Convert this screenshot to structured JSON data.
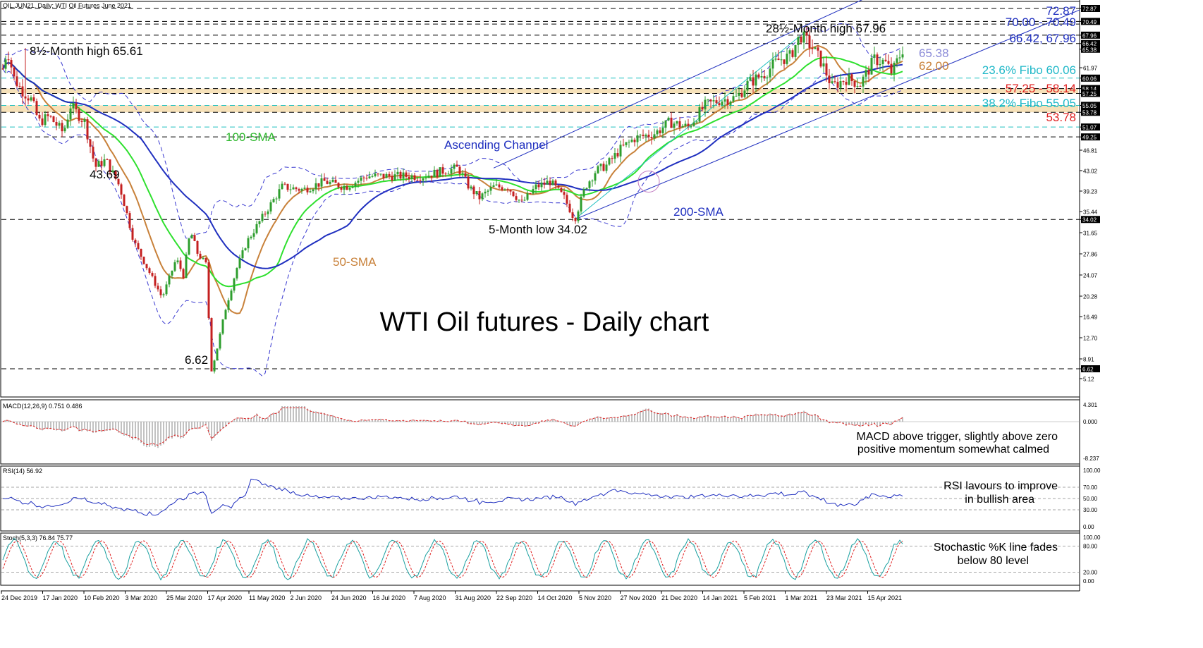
{
  "header": {
    "symbol_line": "OIL.JUN21, Daily:  WTI Oil Futures June 2021"
  },
  "chart_data": {
    "type": "candlestick",
    "title": "WTI Oil futures - Daily chart",
    "price_axis_ticks": [
      "72.87",
      "70.49",
      "67.96",
      "66.42",
      "65.38",
      "61.97",
      "60.06",
      "58.14",
      "57.25",
      "55.05",
      "53.78",
      "51.07",
      "49.25",
      "46.81",
      "43.02",
      "39.23",
      "35.44",
      "34.02",
      "31.65",
      "27.86",
      "24.07",
      "20.28",
      "16.49",
      "12.70",
      "8.91",
      "6.62",
      "5.12"
    ],
    "time_axis_labels": [
      "24 Dec 2019",
      "17 Jan 2020",
      "10 Feb 2020",
      "3 Mar 2020",
      "25 Mar 2020",
      "17 Apr 2020",
      "11 May 2020",
      "2 Jun 2020",
      "24 Jun 2020",
      "16 Jul 2020",
      "7 Aug 2020",
      "31 Aug 2020",
      "22 Sep 2020",
      "14 Oct 2020",
      "5 Nov 2020",
      "27 Nov 2020",
      "21 Dec 2020",
      "14 Jan 2021",
      "5 Feb 2021",
      "1 Mar 2021",
      "23 Mar 2021",
      "15 Apr 2021"
    ],
    "key_prices": {
      "high_8_5_month": 65.61,
      "low_covid": 6.62,
      "feb_low": 43.69,
      "low_5_month": 34.02,
      "high_28_5_month": 67.96,
      "current_close": 65.38,
      "sma50": 62.0
    },
    "horizontal_levels": [
      72.87,
      70.49,
      70.0,
      67.96,
      66.42,
      60.06,
      58.14,
      57.25,
      55.05,
      53.78,
      51.07,
      49.25,
      34.02,
      6.62
    ],
    "support_zones": [
      [
        57.25,
        58.14
      ],
      [
        53.78,
        55.05
      ]
    ],
    "series": [
      {
        "name": "50-SMA",
        "color": "#c8813a"
      },
      {
        "name": "100-SMA",
        "color": "#2ee02e"
      },
      {
        "name": "200-SMA",
        "color": "#1f2fbf"
      }
    ],
    "indicators": {
      "macd": {
        "label": "MACD(12,26,9) 0.751 0.486",
        "ticks": [
          "4.301",
          "0.000",
          "-8.237"
        ],
        "macd": 0.751,
        "signal": 0.486
      },
      "rsi": {
        "label": "RSI(14) 56.92",
        "ticks": [
          "100.00",
          "70.00",
          "50.00",
          "30.00",
          "0.00"
        ],
        "value": 56.92
      },
      "stoch": {
        "label": "Stoch(5,3,3) 76.84 75.77",
        "ticks": [
          "100.00",
          "80.00",
          "20.00",
          "0.00"
        ],
        "k": 76.84,
        "d": 75.77
      }
    }
  },
  "annotations": {
    "high_8_5": "8½-Month high 65.61",
    "high_28_5": "28½-Month high 67.96",
    "low_4369": "43.69",
    "low_662": "6.62",
    "low_5m": "5-Month low 34.02",
    "channel": "Ascending Channel",
    "sma100": "100-SMA",
    "sma200": "200-SMA",
    "sma50": "50-SMA",
    "main_title": "WTI Oil futures - Daily chart",
    "val_6538": "65.38",
    "val_6200": "62.00",
    "lvl_7287": "72.87",
    "lvl_7049": "70.00 - 70.49",
    "lvl_6642": "66.42, 67.96",
    "lvl_fibo236": "23.6% Fibo 60.06",
    "lvl_5725": "57.25 - 58.14",
    "lvl_fibo382": "38.2% Fibo 55.05",
    "lvl_5378": "53.78",
    "macd_note_1": "MACD above trigger, slightly above zero",
    "macd_note_2": "positive momentum somewhat calmed",
    "rsi_note_1": "RSI lavours to improve",
    "rsi_note_2": "in bullish area",
    "stoch_note_1": "Stochastic %K line fades",
    "stoch_note_2": "below 80 level"
  },
  "colors": {
    "up_candle": "#2e9e2e",
    "down_candle": "#c42020",
    "bollinger": "#3a3ad0",
    "fibo": "#20c0c0",
    "support_red": "#e02020",
    "level_blue": "#1f2fbf",
    "zone_fill": "#f4d9a8"
  }
}
